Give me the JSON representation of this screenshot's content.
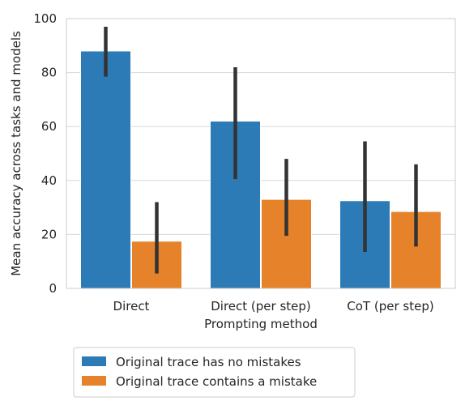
{
  "chart_data": {
    "type": "bar",
    "categories": [
      "Direct",
      "Direct (per step)",
      "CoT (per step)"
    ],
    "series": [
      {
        "name": "Original trace has no mistakes",
        "color": "#2c7bb6",
        "values": [
          88,
          62,
          32.5
        ],
        "error_low": [
          78.5,
          40.5,
          13.5
        ],
        "error_high": [
          97,
          82,
          54.5
        ]
      },
      {
        "name": "Original trace contains a mistake",
        "color": "#e6832a",
        "values": [
          17.5,
          33,
          28.5
        ],
        "error_low": [
          5.5,
          19.5,
          15.5
        ],
        "error_high": [
          32,
          48,
          46
        ]
      }
    ],
    "xlabel": "Prompting method",
    "ylabel": "Mean accuracy across tasks and models",
    "ylim": [
      0,
      100
    ],
    "yticks": [
      0,
      20,
      40,
      60,
      80,
      100
    ],
    "grid": "horizontal",
    "legend_position": "bottom",
    "error_bar_color": "#333333"
  }
}
